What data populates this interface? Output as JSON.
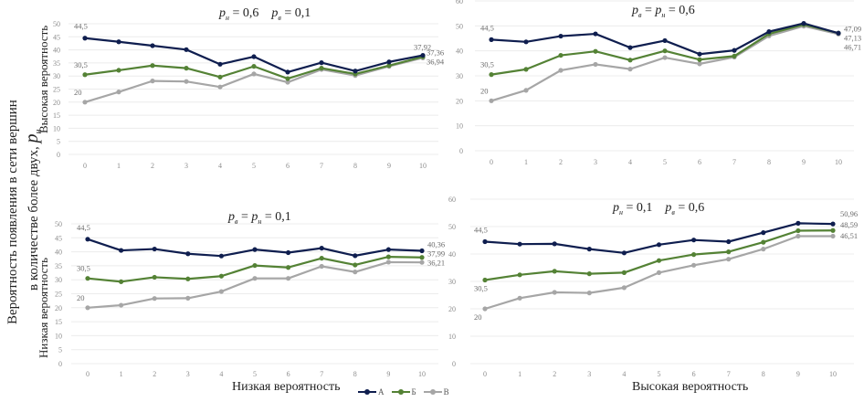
{
  "figure": {
    "main_ylabel_line1": "Вероятность появления в сети вершин",
    "main_ylabel_line2": "в количестве более двух,",
    "main_ylabel_symbol": "p",
    "main_ylabel_subscript": "н",
    "row_labels": {
      "top": "Высокая вероятность",
      "bottom": "Низкая вероятность"
    },
    "column_labels": {
      "left": "Низкая вероятность",
      "right": "Высокая вероятность"
    },
    "legend": [
      {
        "label": "А",
        "color": "#0f1e4f"
      },
      {
        "label": "Б",
        "color": "#548235"
      },
      {
        "label": "В",
        "color": "#a6a6a6"
      }
    ],
    "colors": {
      "A": "#0f1e4f",
      "B": "#548235",
      "C": "#a6a6a6",
      "grid": "#ececec",
      "tick": "#8c8c8c",
      "datalabel": "#6b6b6b"
    }
  },
  "chart_data": [
    {
      "id": "top-left",
      "type": "line",
      "title_parts": [
        {
          "sym": "p",
          "sub": "н",
          "eq": " = ",
          "val": "0,6"
        },
        {
          "sym": "p",
          "sub": "в",
          "eq": " = ",
          "val": "0,1"
        }
      ],
      "title_text": "pн = 0,6   pв = 0,1",
      "x": [
        0,
        1,
        2,
        3,
        4,
        5,
        6,
        7,
        8,
        9,
        10
      ],
      "ylim": [
        0,
        50
      ],
      "yticks": [
        0,
        5,
        10,
        15,
        20,
        25,
        30,
        35,
        40,
        45,
        50
      ],
      "grid": true,
      "series": [
        {
          "name": "А",
          "values": [
            44.5,
            43.1,
            41.6,
            40.1,
            34.5,
            37.4,
            31.5,
            35.1,
            31.9,
            35.4,
            37.92
          ]
        },
        {
          "name": "Б",
          "values": [
            30.5,
            32.2,
            34.0,
            33.0,
            29.6,
            33.7,
            29.0,
            33.0,
            30.8,
            34.0,
            37.36
          ]
        },
        {
          "name": "В",
          "values": [
            20,
            23.9,
            28.1,
            27.9,
            25.8,
            30.8,
            27.6,
            32.5,
            30.2,
            33.7,
            36.94
          ]
        }
      ],
      "data_labels": {
        "start": [
          "44,5",
          "30,5",
          "20"
        ],
        "end": [
          "37,92",
          "37,36",
          "36,94"
        ]
      }
    },
    {
      "id": "top-right",
      "type": "line",
      "title_parts": [
        {
          "sym": "p",
          "sub": "в",
          "eq": " = ",
          "val": ""
        },
        {
          "sym": "p",
          "sub": "н",
          "eq": " = ",
          "val": "0,6"
        }
      ],
      "title_text": "pв = pн = 0,6",
      "x": [
        0,
        1,
        2,
        3,
        4,
        5,
        6,
        7,
        8,
        9,
        10
      ],
      "ylim": [
        0,
        60
      ],
      "yticks": [
        0,
        10,
        20,
        30,
        40,
        50,
        60
      ],
      "grid": true,
      "series": [
        {
          "name": "А",
          "values": [
            44.5,
            43.6,
            45.9,
            46.8,
            41.3,
            44.1,
            38.7,
            40.2,
            47.7,
            51.0,
            47.09
          ]
        },
        {
          "name": "Б",
          "values": [
            30.5,
            32.6,
            38.2,
            39.8,
            36.3,
            40.0,
            36.5,
            37.9,
            46.8,
            50.5,
            47.13
          ]
        },
        {
          "name": "В",
          "values": [
            20,
            24.2,
            32.2,
            34.6,
            32.7,
            37.3,
            34.8,
            37.5,
            46.0,
            49.9,
            46.71
          ]
        }
      ],
      "data_labels": {
        "start": [
          "44,5",
          "30,5",
          "20"
        ],
        "end": [
          "47,09",
          "47,13",
          "46,71"
        ]
      }
    },
    {
      "id": "bottom-left",
      "type": "line",
      "title_parts": [
        {
          "sym": "p",
          "sub": "в",
          "eq": " = ",
          "val": ""
        },
        {
          "sym": "p",
          "sub": "н",
          "eq": " = ",
          "val": "0,1"
        }
      ],
      "title_text": "pв = pн = 0,1",
      "x": [
        0,
        1,
        2,
        3,
        4,
        5,
        6,
        7,
        8,
        9,
        10
      ],
      "ylim": [
        0,
        50
      ],
      "yticks": [
        0,
        5,
        10,
        15,
        20,
        25,
        30,
        35,
        40,
        45,
        50
      ],
      "grid": true,
      "series": [
        {
          "name": "А",
          "values": [
            44.5,
            40.5,
            41.0,
            39.3,
            38.5,
            40.8,
            39.7,
            41.3,
            38.6,
            40.8,
            40.36
          ]
        },
        {
          "name": "Б",
          "values": [
            30.5,
            29.3,
            30.9,
            30.3,
            31.3,
            35.1,
            34.4,
            37.7,
            35.3,
            38.2,
            37.99
          ]
        },
        {
          "name": "В",
          "values": [
            20,
            20.9,
            23.3,
            23.4,
            25.8,
            30.5,
            30.5,
            34.8,
            32.8,
            36.3,
            36.21
          ]
        }
      ],
      "data_labels": {
        "start": [
          "44,5",
          "30,5",
          "20"
        ],
        "end": [
          "40,36",
          "37,99",
          "36,21"
        ]
      }
    },
    {
      "id": "bottom-right",
      "type": "line",
      "title_parts": [
        {
          "sym": "p",
          "sub": "н",
          "eq": " = ",
          "val": "0,1"
        },
        {
          "sym": "p",
          "sub": "в",
          "eq": " = ",
          "val": "0,6"
        }
      ],
      "title_text": "pн = 0,1   pв = 0,6",
      "x": [
        0,
        1,
        2,
        3,
        4,
        5,
        6,
        7,
        8,
        9,
        10
      ],
      "ylim": [
        0,
        60
      ],
      "yticks": [
        0,
        10,
        20,
        30,
        40,
        50,
        60
      ],
      "grid": true,
      "series": [
        {
          "name": "А",
          "values": [
            44.5,
            43.6,
            43.7,
            41.8,
            40.4,
            43.4,
            45.1,
            44.5,
            47.8,
            51.2,
            50.96
          ]
        },
        {
          "name": "Б",
          "values": [
            30.5,
            32.4,
            33.7,
            32.8,
            33.2,
            37.6,
            39.8,
            40.8,
            44.3,
            48.5,
            48.59
          ]
        },
        {
          "name": "В",
          "values": [
            20,
            23.9,
            26.0,
            25.8,
            27.7,
            33.2,
            35.9,
            38.1,
            41.8,
            46.5,
            46.51
          ]
        }
      ],
      "data_labels": {
        "start": [
          "44,5",
          "30,5",
          "20"
        ],
        "end": [
          "50,96",
          "48,59",
          "46,51"
        ]
      }
    }
  ]
}
